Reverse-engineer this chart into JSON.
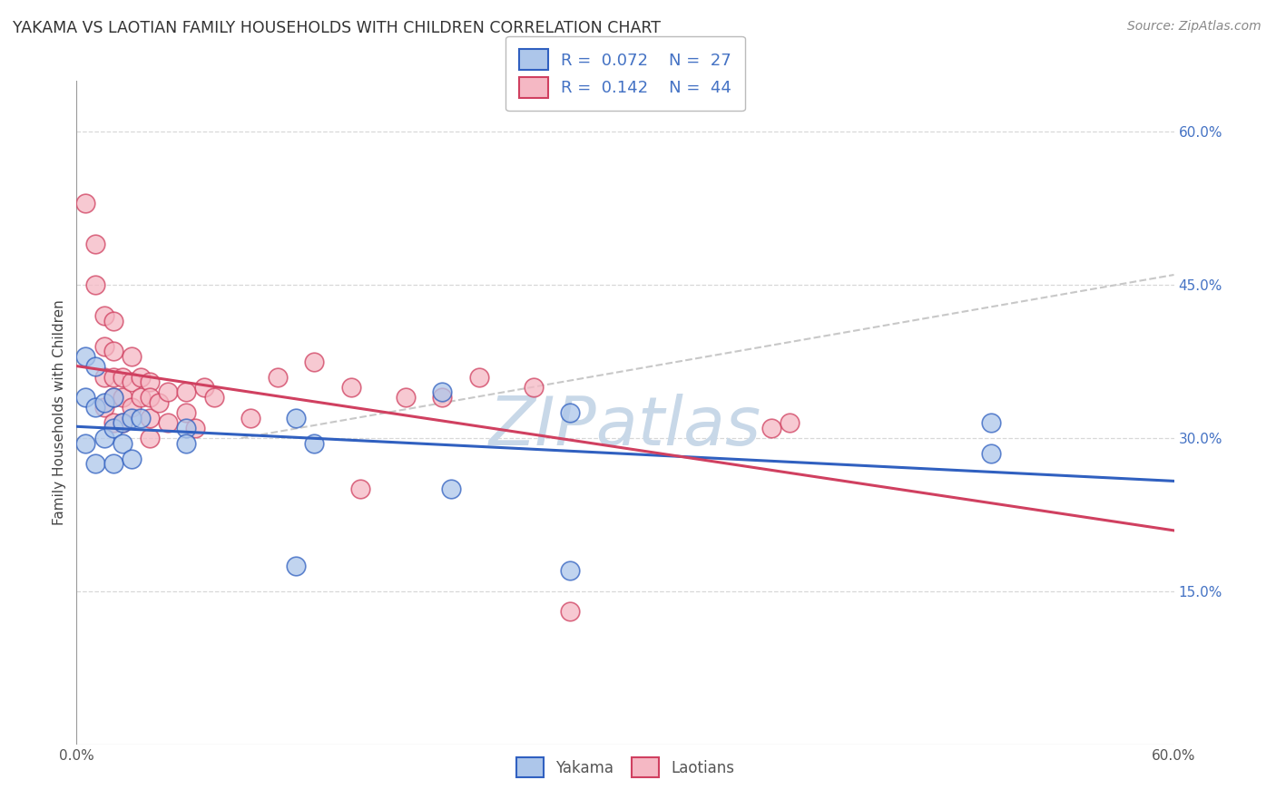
{
  "title": "YAKAMA VS LAOTIAN FAMILY HOUSEHOLDS WITH CHILDREN CORRELATION CHART",
  "source": "Source: ZipAtlas.com",
  "ylabel": "Family Households with Children",
  "xlim": [
    0.0,
    0.6
  ],
  "ylim": [
    0.0,
    0.65
  ],
  "yticks": [
    0.15,
    0.3,
    0.45,
    0.6
  ],
  "ytick_labels": [
    "15.0%",
    "30.0%",
    "45.0%",
    "60.0%"
  ],
  "yakama_R": 0.072,
  "yakama_N": 27,
  "laotian_R": 0.142,
  "laotian_N": 44,
  "yakama_color": "#adc6ea",
  "laotian_color": "#f5b8c4",
  "yakama_line_color": "#3060c0",
  "laotian_line_color": "#d04060",
  "trendline_dash_color": "#c8c8c8",
  "watermark_color": "#c8d8e8",
  "background_color": "#ffffff",
  "grid_color": "#d8d8d8",
  "yakama_x": [
    0.005,
    0.005,
    0.005,
    0.01,
    0.01,
    0.01,
    0.015,
    0.015,
    0.02,
    0.02,
    0.02,
    0.025,
    0.025,
    0.03,
    0.03,
    0.035,
    0.06,
    0.06,
    0.12,
    0.12,
    0.13,
    0.2,
    0.205,
    0.27,
    0.27,
    0.5,
    0.5
  ],
  "yakama_y": [
    0.38,
    0.34,
    0.295,
    0.37,
    0.33,
    0.275,
    0.335,
    0.3,
    0.34,
    0.31,
    0.275,
    0.315,
    0.295,
    0.32,
    0.28,
    0.32,
    0.31,
    0.295,
    0.32,
    0.175,
    0.295,
    0.345,
    0.25,
    0.325,
    0.17,
    0.315,
    0.285
  ],
  "laotian_x": [
    0.005,
    0.01,
    0.01,
    0.015,
    0.015,
    0.015,
    0.015,
    0.02,
    0.02,
    0.02,
    0.02,
    0.02,
    0.025,
    0.025,
    0.025,
    0.03,
    0.03,
    0.03,
    0.035,
    0.035,
    0.04,
    0.04,
    0.04,
    0.04,
    0.045,
    0.05,
    0.05,
    0.06,
    0.06,
    0.065,
    0.07,
    0.075,
    0.095,
    0.11,
    0.13,
    0.15,
    0.155,
    0.18,
    0.2,
    0.22,
    0.25,
    0.27,
    0.38,
    0.39
  ],
  "laotian_y": [
    0.53,
    0.49,
    0.45,
    0.42,
    0.39,
    0.36,
    0.33,
    0.415,
    0.385,
    0.36,
    0.34,
    0.315,
    0.36,
    0.34,
    0.315,
    0.38,
    0.355,
    0.33,
    0.36,
    0.34,
    0.355,
    0.34,
    0.32,
    0.3,
    0.335,
    0.345,
    0.315,
    0.345,
    0.325,
    0.31,
    0.35,
    0.34,
    0.32,
    0.36,
    0.375,
    0.35,
    0.25,
    0.34,
    0.34,
    0.36,
    0.35,
    0.13,
    0.31,
    0.315
  ]
}
